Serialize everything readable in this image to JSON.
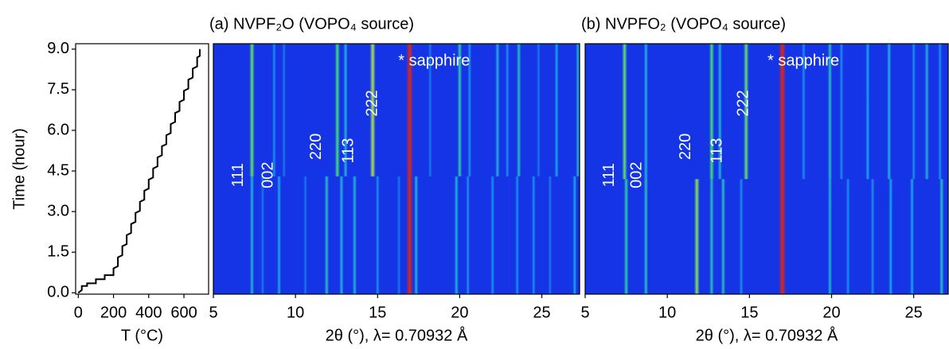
{
  "chart_data": [
    {
      "type": "line",
      "xlabel": "T (°C)",
      "ylabel": "Time (hour)",
      "color": "#000000",
      "xlim": [
        -15,
        740
      ],
      "xticks": [
        0,
        200,
        400,
        600
      ],
      "ylim": [
        -0.05,
        9.2
      ],
      "yticks": [
        {
          "value": 0,
          "label": "0.0"
        },
        1.5,
        {
          "value": 3,
          "label": "3.0"
        },
        4.5,
        {
          "value": 6,
          "label": "6.0"
        },
        7.5,
        {
          "value": 9,
          "label": "9.0"
        }
      ],
      "x": [
        0,
        20,
        20,
        50,
        50,
        100,
        100,
        150,
        150,
        200,
        200,
        225,
        225,
        250,
        250,
        275,
        275,
        300,
        300,
        325,
        325,
        350,
        350,
        375,
        375,
        400,
        400,
        425,
        425,
        450,
        450,
        475,
        475,
        500,
        500,
        525,
        525,
        550,
        550,
        575,
        575,
        600,
        600,
        625,
        625,
        650,
        650,
        675,
        675,
        690,
        690
      ],
      "y": [
        0,
        0.1,
        0.25,
        0.25,
        0.35,
        0.35,
        0.5,
        0.5,
        0.65,
        0.65,
        0.9,
        0.98,
        1.31,
        1.39,
        1.72,
        1.8,
        2.13,
        2.21,
        2.54,
        2.62,
        2.95,
        3.03,
        3.36,
        3.44,
        3.77,
        3.85,
        4.18,
        4.26,
        4.59,
        4.67,
        5.0,
        5.08,
        5.41,
        5.49,
        5.82,
        5.9,
        6.23,
        6.31,
        6.64,
        6.72,
        7.05,
        7.13,
        7.46,
        7.54,
        7.87,
        7.95,
        8.28,
        8.36,
        8.69,
        8.75,
        9.0
      ]
    },
    {
      "type": "heatmap",
      "title": "(a) NVPF₂O (VOPO₄ source)",
      "xlabel": "2θ (°), λ= 0.70932 Å",
      "xlim": [
        5,
        27.3
      ],
      "xticks": [
        5,
        10,
        15,
        20,
        25
      ],
      "ylim": [
        -0.05,
        9.2
      ],
      "colormap": [
        "#1434e6",
        "#19a8f0",
        "#3fe07a",
        "#f0e628",
        "#e0261a"
      ],
      "streaks": {
        "x": [
          7.35,
          8.7,
          9.3,
          12.55,
          13.05,
          14.7,
          16.95,
          18.2,
          20.0,
          20.6,
          22.3,
          22.9,
          23.6,
          24.8,
          25.9,
          27.2,
          7.35,
          8.0,
          9.0,
          10.6,
          11.9,
          12.8,
          13.6,
          15.0,
          16.3,
          17.35,
          19.8,
          20.5,
          22.0,
          23.5,
          24.5,
          25.5,
          27.0
        ],
        "t_start": [
          4.3,
          4.3,
          4.3,
          4.3,
          4.3,
          4.3,
          -0.05,
          4.3,
          4.3,
          4.3,
          4.3,
          4.3,
          4.3,
          4.3,
          4.3,
          4.3,
          -0.05,
          -0.05,
          -0.05,
          -0.05,
          -0.05,
          -0.05,
          -0.05,
          -0.05,
          -0.05,
          -0.05,
          -0.05,
          -0.05,
          -0.05,
          -0.05,
          -0.05,
          -0.05,
          -0.05
        ],
        "t_end": [
          9.2,
          9.2,
          9.2,
          9.2,
          9.2,
          9.2,
          9.2,
          9.2,
          9.2,
          9.2,
          9.2,
          9.2,
          9.2,
          9.2,
          9.2,
          9.2,
          4.3,
          4.3,
          4.3,
          4.3,
          4.3,
          4.3,
          4.3,
          4.3,
          4.3,
          4.3,
          4.3,
          4.3,
          4.3,
          4.3,
          4.3,
          4.3,
          4.3
        ],
        "intensity": [
          0.55,
          0.2,
          0.15,
          0.5,
          0.3,
          0.65,
          1.0,
          0.15,
          0.4,
          0.2,
          0.3,
          0.2,
          0.35,
          0.15,
          0.25,
          0.3,
          0.3,
          0.15,
          0.25,
          0.15,
          0.35,
          0.3,
          0.3,
          0.2,
          0.15,
          0.3,
          0.3,
          0.2,
          0.2,
          0.2,
          0.2,
          0.15,
          0.25
        ]
      },
      "annotations": [
        {
          "text": "111",
          "x": 6.55,
          "y": 4.35,
          "rotated": true
        },
        {
          "text": "002",
          "x": 8.35,
          "y": 4.35,
          "rotated": true
        },
        {
          "text": "220",
          "x": 11.3,
          "y": 5.4,
          "rotated": true
        },
        {
          "text": "113",
          "x": 13.25,
          "y": 5.25,
          "rotated": true
        },
        {
          "text": "222",
          "x": 14.7,
          "y": 7.0,
          "rotated": true
        },
        {
          "text": "* sapphire",
          "x": 16.26,
          "y": 8.55,
          "rotated": false
        }
      ]
    },
    {
      "type": "heatmap",
      "title": "(b) NVPFO₂ (VOPO₄ source)",
      "xlabel": "2θ (°), λ= 0.70932 Å",
      "xlim": [
        5,
        27.1
      ],
      "xticks": [
        5,
        10,
        15,
        20,
        25
      ],
      "ylim": [
        -0.05,
        9.2
      ],
      "colormap": [
        "#1434e6",
        "#19a8f0",
        "#3fe07a",
        "#f0e628",
        "#e0261a"
      ],
      "streaks": {
        "x": [
          7.4,
          8.7,
          12.7,
          13.2,
          14.8,
          17.0,
          18.3,
          19.9,
          20.6,
          22.2,
          23.5,
          25.0,
          25.8,
          26.6,
          7.5,
          8.7,
          11.8,
          12.7,
          13.4,
          14.5,
          19.9,
          21.0,
          22.5,
          23.6,
          24.9,
          26.7
        ],
        "t_start": [
          4.2,
          4.2,
          4.2,
          4.2,
          4.2,
          -0.05,
          4.2,
          4.2,
          4.2,
          4.2,
          4.2,
          4.2,
          4.2,
          4.2,
          -0.05,
          -0.05,
          -0.05,
          -0.05,
          -0.05,
          -0.05,
          -0.05,
          -0.05,
          -0.05,
          -0.05,
          -0.05,
          -0.05
        ],
        "t_end": [
          9.2,
          9.2,
          9.2,
          9.2,
          9.2,
          9.2,
          9.2,
          9.2,
          9.2,
          9.2,
          9.2,
          9.2,
          9.2,
          9.2,
          4.2,
          4.2,
          4.2,
          4.2,
          4.2,
          4.2,
          4.2,
          4.2,
          4.2,
          4.2,
          4.2,
          4.2
        ],
        "intensity": [
          0.55,
          0.3,
          0.5,
          0.3,
          0.55,
          1.0,
          0.2,
          0.35,
          0.2,
          0.25,
          0.3,
          0.2,
          0.3,
          0.2,
          0.4,
          0.35,
          0.6,
          0.35,
          0.35,
          0.2,
          0.3,
          0.2,
          0.2,
          0.25,
          0.25,
          0.35
        ]
      },
      "annotations": [
        {
          "text": "111",
          "x": 6.5,
          "y": 4.35,
          "rotated": true
        },
        {
          "text": "002",
          "x": 8.15,
          "y": 4.35,
          "rotated": true
        },
        {
          "text": "220",
          "x": 11.15,
          "y": 5.4,
          "rotated": true
        },
        {
          "text": "113",
          "x": 13.05,
          "y": 5.25,
          "rotated": true
        },
        {
          "text": "222",
          "x": 14.65,
          "y": 7.0,
          "rotated": true
        },
        {
          "text": "* sapphire",
          "x": 16.1,
          "y": 8.55,
          "rotated": false
        }
      ]
    }
  ]
}
